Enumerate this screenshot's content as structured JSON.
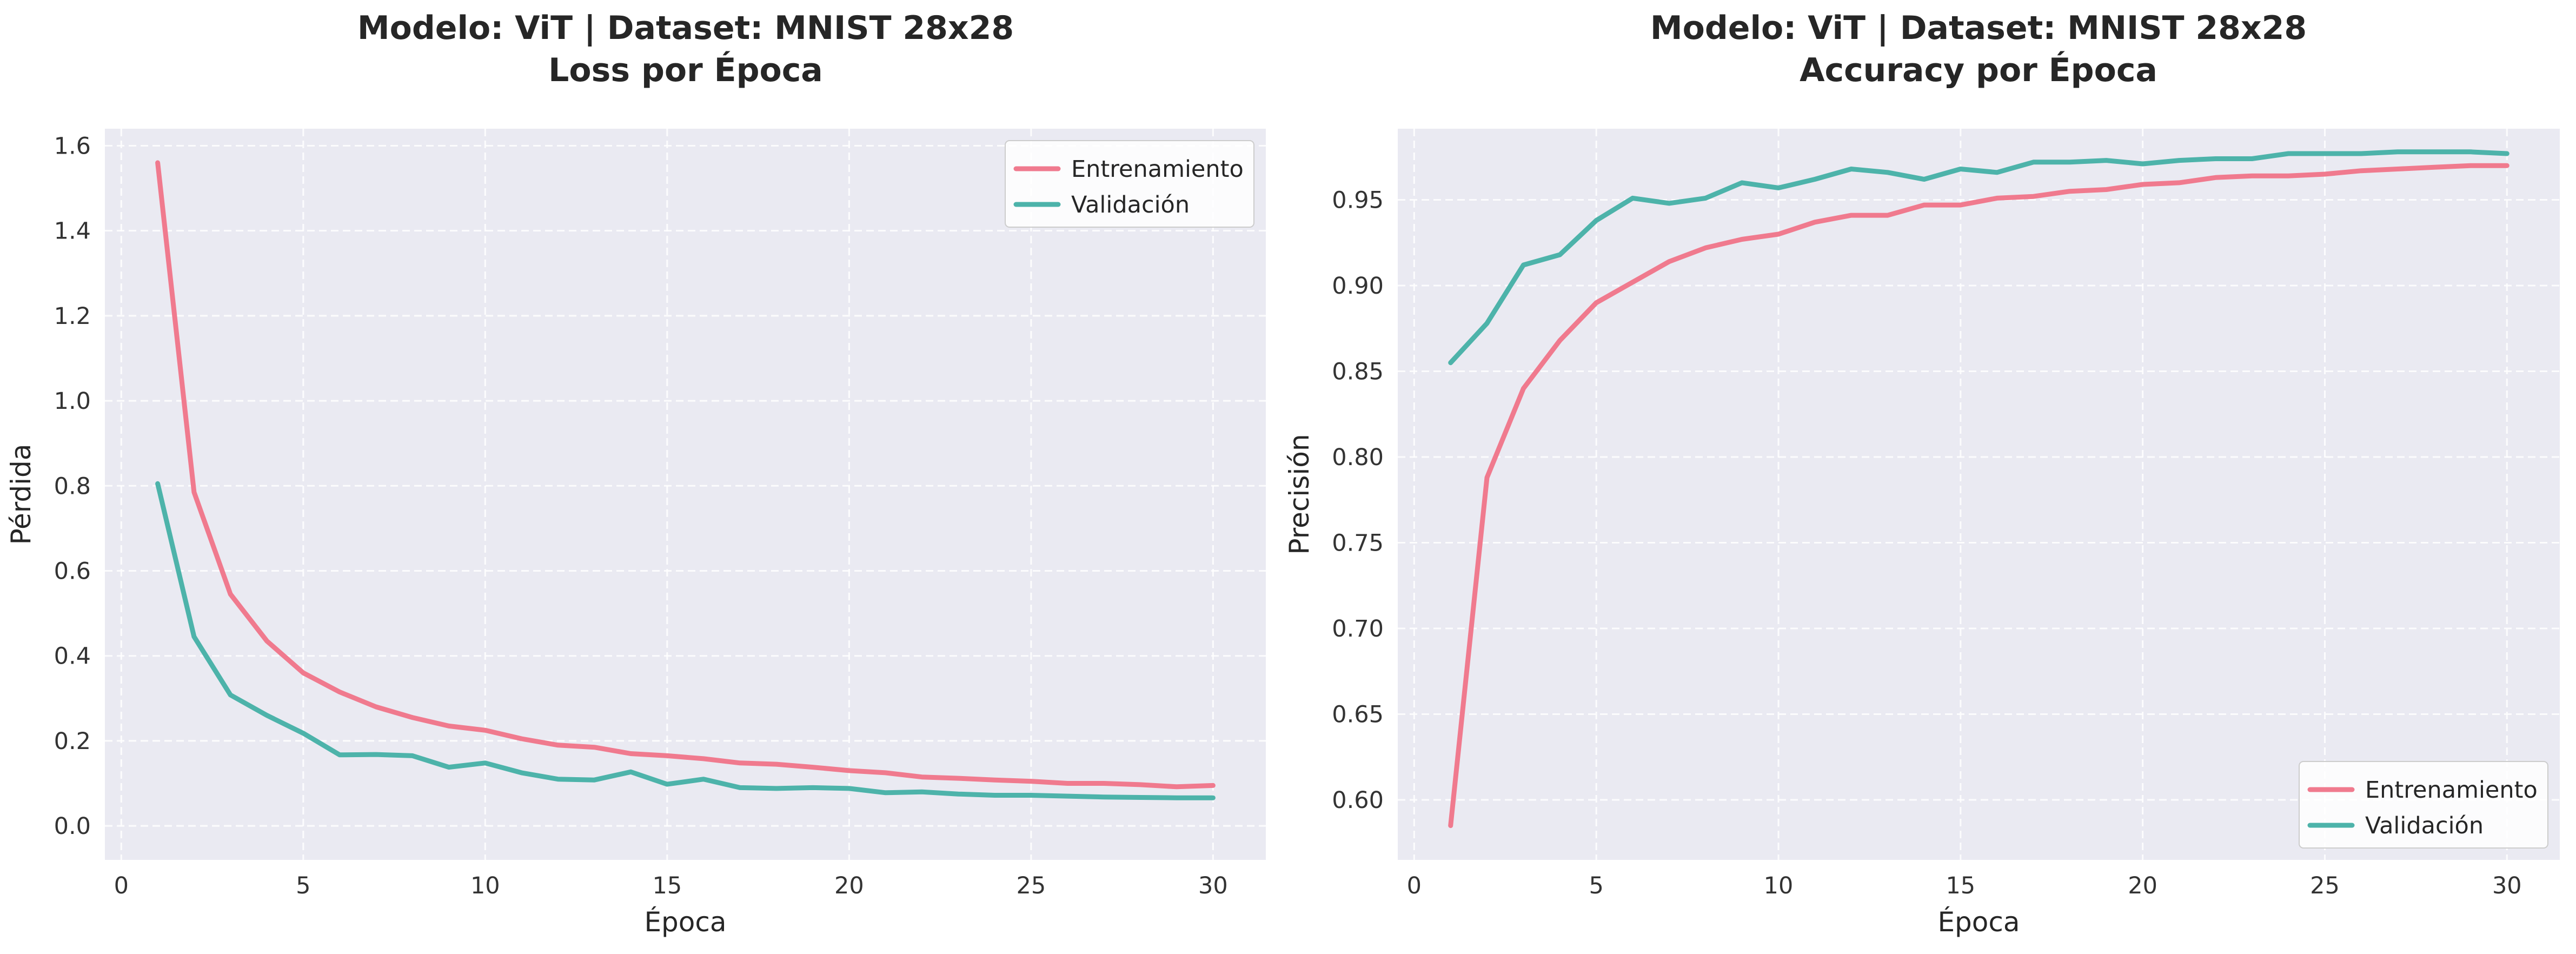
{
  "chart_data": [
    {
      "type": "line",
      "title": [
        "Modelo: ViT | Dataset: MNIST 28x28",
        "Loss por Época"
      ],
      "xlabel": "Época",
      "ylabel": "Pérdida",
      "xlim": [
        -0.45,
        31.45
      ],
      "ylim": [
        -0.08,
        1.64
      ],
      "xticks": [
        0,
        5,
        10,
        15,
        20,
        25,
        30
      ],
      "yticks": [
        0.0,
        0.2,
        0.4,
        0.6,
        0.8,
        1.0,
        1.2,
        1.4,
        1.6
      ],
      "ytick_decimals": 1,
      "grid": true,
      "legend_position": "upper right",
      "x": [
        1,
        2,
        3,
        4,
        5,
        6,
        7,
        8,
        9,
        10,
        11,
        12,
        13,
        14,
        15,
        16,
        17,
        18,
        19,
        20,
        21,
        22,
        23,
        24,
        25,
        26,
        27,
        28,
        29,
        30
      ],
      "series": [
        {
          "name": "Entrenamiento",
          "color": "#f07a8e",
          "values": [
            1.56,
            0.785,
            0.545,
            0.435,
            0.36,
            0.315,
            0.28,
            0.255,
            0.235,
            0.225,
            0.205,
            0.19,
            0.185,
            0.17,
            0.165,
            0.158,
            0.148,
            0.145,
            0.138,
            0.13,
            0.125,
            0.115,
            0.112,
            0.108,
            0.105,
            0.1,
            0.1,
            0.097,
            0.092,
            0.095
          ]
        },
        {
          "name": "Validación",
          "color": "#4db3aa",
          "values": [
            0.805,
            0.445,
            0.308,
            0.26,
            0.218,
            0.167,
            0.168,
            0.165,
            0.138,
            0.148,
            0.125,
            0.11,
            0.108,
            0.127,
            0.098,
            0.11,
            0.09,
            0.088,
            0.09,
            0.088,
            0.078,
            0.08,
            0.075,
            0.072,
            0.072,
            0.07,
            0.068,
            0.067,
            0.066,
            0.066
          ]
        }
      ]
    },
    {
      "type": "line",
      "title": [
        "Modelo: ViT | Dataset: MNIST 28x28",
        "Accuracy por Época"
      ],
      "xlabel": "Época",
      "ylabel": "Precisión",
      "xlim": [
        -0.45,
        31.45
      ],
      "ylim": [
        0.565,
        0.9915
      ],
      "xticks": [
        0,
        5,
        10,
        15,
        20,
        25,
        30
      ],
      "yticks": [
        0.6,
        0.65,
        0.7,
        0.75,
        0.8,
        0.85,
        0.9,
        0.95
      ],
      "ytick_decimals": 2,
      "grid": true,
      "legend_position": "lower right",
      "x": [
        1,
        2,
        3,
        4,
        5,
        6,
        7,
        8,
        9,
        10,
        11,
        12,
        13,
        14,
        15,
        16,
        17,
        18,
        19,
        20,
        21,
        22,
        23,
        24,
        25,
        26,
        27,
        28,
        29,
        30
      ],
      "series": [
        {
          "name": "Entrenamiento",
          "color": "#f07a8e",
          "values": [
            0.585,
            0.788,
            0.84,
            0.868,
            0.89,
            0.902,
            0.914,
            0.922,
            0.927,
            0.93,
            0.937,
            0.941,
            0.941,
            0.947,
            0.947,
            0.951,
            0.952,
            0.955,
            0.956,
            0.959,
            0.96,
            0.963,
            0.964,
            0.964,
            0.965,
            0.967,
            0.968,
            0.969,
            0.97,
            0.97
          ]
        },
        {
          "name": "Validación",
          "color": "#4db3aa",
          "values": [
            0.855,
            0.878,
            0.912,
            0.918,
            0.938,
            0.951,
            0.948,
            0.951,
            0.96,
            0.957,
            0.962,
            0.968,
            0.966,
            0.962,
            0.968,
            0.966,
            0.972,
            0.972,
            0.973,
            0.971,
            0.973,
            0.974,
            0.974,
            0.977,
            0.977,
            0.977,
            0.978,
            0.978,
            0.978,
            0.977
          ]
        }
      ]
    }
  ]
}
